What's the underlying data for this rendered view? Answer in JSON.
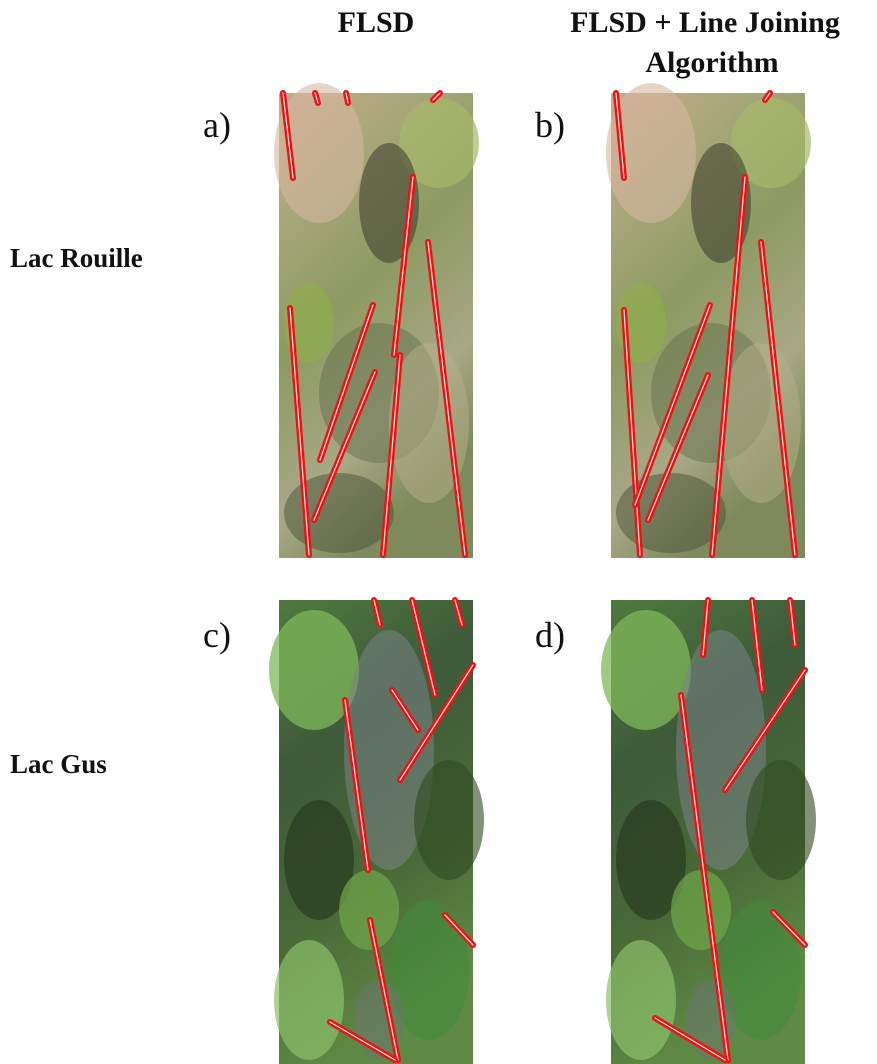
{
  "columns": [
    {
      "title": [
        "FLSD"
      ]
    },
    {
      "title": [
        "FLSD + Line Joining",
        "Algorithm"
      ]
    }
  ],
  "rows": [
    {
      "label": "Lac Rouille",
      "panels": [
        "a)",
        "b)"
      ]
    },
    {
      "label": "Lac Gus",
      "panels": [
        "c)",
        "d)"
      ]
    }
  ]
}
